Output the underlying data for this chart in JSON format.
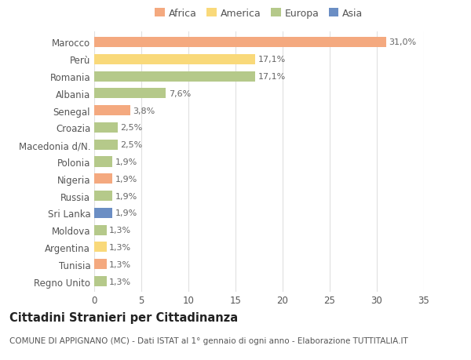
{
  "categories": [
    "Marocco",
    "Perù",
    "Romania",
    "Albania",
    "Senegal",
    "Croazia",
    "Macedonia d/N.",
    "Polonia",
    "Nigeria",
    "Russia",
    "Sri Lanka",
    "Moldova",
    "Argentina",
    "Tunisia",
    "Regno Unito"
  ],
  "values": [
    31.0,
    17.1,
    17.1,
    7.6,
    3.8,
    2.5,
    2.5,
    1.9,
    1.9,
    1.9,
    1.9,
    1.3,
    1.3,
    1.3,
    1.3
  ],
  "colors": [
    "#F4A97F",
    "#F9D97A",
    "#B5C98A",
    "#B5C98A",
    "#F4A97F",
    "#B5C98A",
    "#B5C98A",
    "#B5C98A",
    "#F4A97F",
    "#B5C98A",
    "#6B8EC4",
    "#B5C98A",
    "#F9D97A",
    "#F4A97F",
    "#B5C98A"
  ],
  "labels": [
    "31,0%",
    "17,1%",
    "17,1%",
    "7,6%",
    "3,8%",
    "2,5%",
    "2,5%",
    "1,9%",
    "1,9%",
    "1,9%",
    "1,9%",
    "1,3%",
    "1,3%",
    "1,3%",
    "1,3%"
  ],
  "legend": [
    {
      "label": "Africa",
      "color": "#F4A97F"
    },
    {
      "label": "America",
      "color": "#F9D97A"
    },
    {
      "label": "Europa",
      "color": "#B5C98A"
    },
    {
      "label": "Asia",
      "color": "#6B8EC4"
    }
  ],
  "title": "Cittadini Stranieri per Cittadinanza",
  "subtitle": "COMUNE DI APPIGNANO (MC) - Dati ISTAT al 1° gennaio di ogni anno - Elaborazione TUTTITALIA.IT",
  "xlim": [
    0,
    35
  ],
  "xticks": [
    0,
    5,
    10,
    15,
    20,
    25,
    30,
    35
  ],
  "background_color": "#ffffff",
  "grid_color": "#e0e0e0",
  "bar_height": 0.6,
  "title_fontsize": 10.5,
  "subtitle_fontsize": 7.5,
  "tick_fontsize": 8.5,
  "label_fontsize": 8
}
